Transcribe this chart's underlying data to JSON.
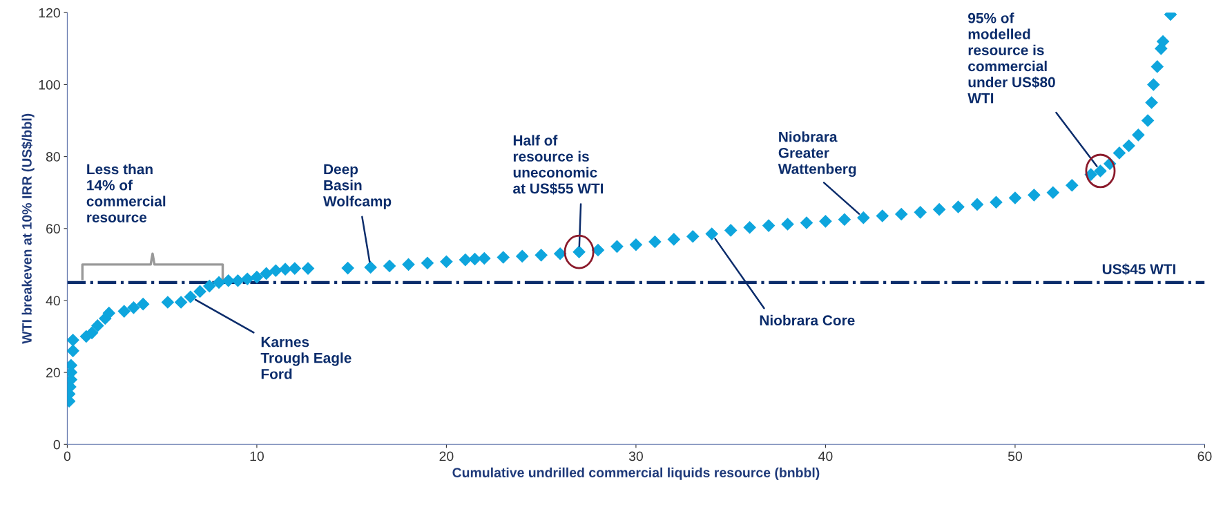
{
  "chart_data": {
    "type": "scatter",
    "xlabel": "Cumulative undrilled commercial liquids resource (bnbbl)",
    "ylabel": "WTI breakeven at 10% IRR (US$/bbl)",
    "xlim": [
      0,
      60
    ],
    "ylim": [
      0,
      120
    ],
    "xticks": [
      0,
      10,
      20,
      30,
      40,
      50,
      60
    ],
    "yticks": [
      0,
      20,
      40,
      60,
      80,
      100,
      120
    ],
    "grid": false,
    "marker": "diamond",
    "series": [
      {
        "color": "#0ea5dd",
        "x": [
          0.1,
          0.1,
          0.15,
          0.2,
          0.2,
          0.2,
          0.3,
          0.3,
          1,
          1.3,
          1.6,
          2,
          2.2,
          3,
          3.5,
          4,
          5.3,
          6,
          6.5,
          7,
          7.5,
          8,
          8.5,
          9,
          9.5,
          10,
          10.5,
          11,
          11.5,
          12,
          12.7,
          14.8,
          16,
          17,
          18,
          19,
          20,
          21,
          21.5,
          22,
          23,
          24,
          25,
          26,
          27,
          28,
          29,
          30,
          31,
          32,
          33,
          34,
          35,
          36,
          37,
          38,
          39,
          40,
          41,
          42,
          43,
          44,
          45,
          46,
          47,
          48,
          49,
          50,
          51,
          52,
          53,
          54,
          54.5,
          55,
          55.5,
          56,
          56.5,
          57,
          57.2,
          57.3,
          57.5,
          57.7,
          57.8,
          58.2
        ],
        "values": [
          12,
          14,
          16,
          18,
          20,
          22,
          26,
          29,
          30,
          31,
          33,
          35,
          36.5,
          37,
          38,
          39,
          39.5,
          39.5,
          41,
          42.5,
          44,
          45,
          45.5,
          45.5,
          46,
          46.5,
          47.5,
          48.3,
          48.7,
          48.9,
          48.9,
          49,
          49.2,
          49.6,
          50,
          50.4,
          50.8,
          51.3,
          51.5,
          51.7,
          52,
          52.3,
          52.6,
          53,
          53.5,
          54,
          55,
          55.5,
          56.3,
          57,
          57.8,
          58.5,
          59.5,
          60.3,
          60.8,
          61.2,
          61.6,
          62,
          62.5,
          63,
          63.5,
          64,
          64.5,
          65.3,
          66,
          66.7,
          67.3,
          68.5,
          69.3,
          70,
          72,
          75,
          76,
          78,
          81,
          83,
          86,
          90,
          95,
          100,
          105,
          110,
          112,
          119.5
        ]
      }
    ],
    "ref_lines": [
      {
        "axis": "y",
        "value": 45,
        "label": "US$45 WTI",
        "color": "#0b2c6b",
        "line_style": "dashdot"
      }
    ],
    "annotations": [
      "Less than\n14% of\ncommercial\nresource",
      {
        "text": "Karnes\nTrough Eagle\nFord",
        "x": 6.5,
        "y": 41
      },
      {
        "text": "Deep\nBasin\nWolfcamp",
        "x": 16,
        "y": 49.2
      },
      {
        "text": "Half of\nresource is\nuneconomic\nat US$55 WTI",
        "x": 27,
        "y": 53.5
      },
      {
        "text": "Niobrara Core",
        "x": 34,
        "y": 58.5
      },
      {
        "text": "Niobrara\nGreater\nWattenberg",
        "x": 42,
        "y": 63
      },
      {
        "text": "95% of\nmodelled\nresource is\ncommercial\nunder US$80\nWTI",
        "x": 54.5,
        "y": 76
      }
    ]
  }
}
